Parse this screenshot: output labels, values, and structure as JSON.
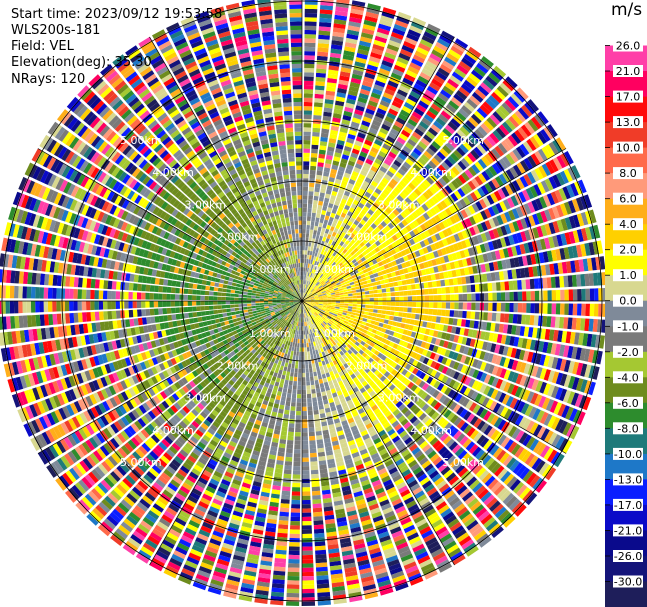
{
  "header": {
    "start_time": "Start time: 2023/09/12 19:53:58",
    "instrument": "WLS200s-181",
    "field": "Field: VEL",
    "elevation": "Elevation(deg): 35.30",
    "nrays": "NRays: 120"
  },
  "chart_data": {
    "type": "heatmap",
    "projection": "polar-ppi",
    "grid": true,
    "n_rays": 120,
    "range_rings_km": [
      "1.00km",
      "2.00km",
      "3.00km",
      "4.00km",
      "5.00km"
    ],
    "colorbar": {
      "unit": "m/s",
      "ticks": [
        "26.0",
        "21.0",
        "17.0",
        "13.0",
        "10.0",
        "8.0",
        "6.0",
        "4.0",
        "2.0",
        "1.0",
        "0.0",
        "-1.0",
        "-2.0",
        "-4.0",
        "-6.0",
        "-8.0",
        "-10.0",
        "-13.0",
        "-17.0",
        "-21.0",
        "-26.0",
        "-30.0"
      ],
      "colors": [
        "#ffffff",
        "#ff3fa8",
        "#ff0060",
        "#ff0a0a",
        "#f03c28",
        "#ff6a4a",
        "#ff9a7a",
        "#ffae1a",
        "#ffd000",
        "#ffff00",
        "#d8d890",
        "#7f8a99",
        "#7a7a7a",
        "#a5c832",
        "#6e8c1e",
        "#2d8c2d",
        "#1e7a7a",
        "#1e78c8",
        "#0a1eff",
        "#0a0ac8",
        "#0a0a8c",
        "#14147a",
        "#1e1e5a"
      ]
    }
  }
}
